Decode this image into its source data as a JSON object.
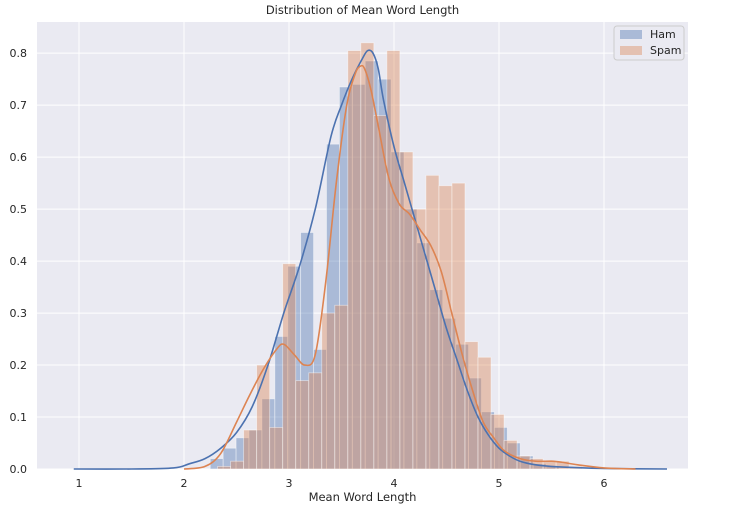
{
  "chart_data": {
    "type": "bar",
    "title": "Distribution of Mean Word Length",
    "xlabel": "Mean Word Length",
    "ylabel": "",
    "xlim": [
      0.6,
      6.8
    ],
    "ylim": [
      0,
      0.86
    ],
    "xticks": [
      1,
      2,
      3,
      4,
      5,
      6
    ],
    "yticks": [
      0.0,
      0.1,
      0.2,
      0.3,
      0.4,
      0.5,
      0.6,
      0.7,
      0.8
    ],
    "grid": true,
    "legend": "top-right",
    "series": [
      {
        "name": "Ham",
        "color": "#4c72b0",
        "bar_width": 0.123,
        "bins": [
          [
            2.25,
            0.02
          ],
          [
            2.373,
            0.04
          ],
          [
            2.496,
            0.06
          ],
          [
            2.619,
            0.075
          ],
          [
            2.742,
            0.135
          ],
          [
            2.865,
            0.255
          ],
          [
            2.988,
            0.39
          ],
          [
            3.111,
            0.455
          ],
          [
            3.234,
            0.23
          ],
          [
            3.357,
            0.625
          ],
          [
            3.48,
            0.735
          ],
          [
            3.603,
            0.74
          ],
          [
            3.726,
            0.785
          ],
          [
            3.849,
            0.75
          ],
          [
            3.972,
            0.61
          ],
          [
            4.095,
            0.5
          ],
          [
            4.218,
            0.435
          ],
          [
            4.341,
            0.345
          ],
          [
            4.464,
            0.29
          ],
          [
            4.587,
            0.24
          ],
          [
            4.71,
            0.175
          ],
          [
            4.833,
            0.11
          ],
          [
            4.956,
            0.08
          ],
          [
            5.079,
            0.05
          ],
          [
            5.202,
            0.025
          ],
          [
            5.325,
            0.01
          ],
          [
            5.448,
            0.005
          ]
        ],
        "kde_x": [
          0.95,
          1.5,
          1.9,
          2.05,
          2.2,
          2.35,
          2.5,
          2.65,
          2.8,
          2.95,
          3.1,
          3.25,
          3.4,
          3.5,
          3.6,
          3.7,
          3.75,
          3.8,
          3.85,
          3.9,
          4.0,
          4.1,
          4.2,
          4.3,
          4.4,
          4.5,
          4.6,
          4.7,
          4.8,
          4.9,
          5.0,
          5.1,
          5.2,
          5.35,
          5.5,
          5.7,
          6.0,
          6.6
        ],
        "kde_y": [
          0.0,
          0.0,
          0.002,
          0.01,
          0.02,
          0.04,
          0.07,
          0.12,
          0.2,
          0.3,
          0.39,
          0.5,
          0.64,
          0.7,
          0.75,
          0.79,
          0.805,
          0.8,
          0.77,
          0.71,
          0.62,
          0.55,
          0.48,
          0.41,
          0.34,
          0.27,
          0.21,
          0.15,
          0.1,
          0.065,
          0.04,
          0.025,
          0.015,
          0.008,
          0.005,
          0.003,
          0.001,
          0.0
        ]
      },
      {
        "name": "Spam",
        "color": "#dd8452",
        "bar_width": 0.124,
        "bins": [
          [
            2.32,
            0.005
          ],
          [
            2.444,
            0.015
          ],
          [
            2.568,
            0.075
          ],
          [
            2.692,
            0.2
          ],
          [
            2.816,
            0.08
          ],
          [
            2.94,
            0.395
          ],
          [
            3.064,
            0.17
          ],
          [
            3.188,
            0.185
          ],
          [
            3.312,
            0.3
          ],
          [
            3.436,
            0.315
          ],
          [
            3.56,
            0.805
          ],
          [
            3.684,
            0.82
          ],
          [
            3.808,
            0.68
          ],
          [
            3.932,
            0.805
          ],
          [
            4.056,
            0.61
          ],
          [
            4.18,
            0.5
          ],
          [
            4.304,
            0.565
          ],
          [
            4.428,
            0.545
          ],
          [
            4.552,
            0.55
          ],
          [
            4.676,
            0.245
          ],
          [
            4.8,
            0.215
          ],
          [
            4.924,
            0.105
          ],
          [
            5.048,
            0.055
          ],
          [
            5.172,
            0.025
          ],
          [
            5.296,
            0.02
          ],
          [
            5.42,
            0.015
          ],
          [
            5.544,
            0.015
          ],
          [
            5.668,
            0.005
          ]
        ],
        "kde_x": [
          2.0,
          2.2,
          2.35,
          2.5,
          2.62,
          2.75,
          2.88,
          2.95,
          3.05,
          3.15,
          3.25,
          3.35,
          3.45,
          3.55,
          3.63,
          3.68,
          3.72,
          3.78,
          3.85,
          3.95,
          4.05,
          4.15,
          4.25,
          4.35,
          4.45,
          4.55,
          4.65,
          4.75,
          4.85,
          4.95,
          5.05,
          5.2,
          5.35,
          5.5,
          5.6,
          5.75,
          6.0,
          6.3
        ],
        "kde_y": [
          0.0,
          0.005,
          0.03,
          0.09,
          0.14,
          0.19,
          0.23,
          0.24,
          0.22,
          0.2,
          0.22,
          0.36,
          0.55,
          0.7,
          0.76,
          0.775,
          0.77,
          0.73,
          0.66,
          0.56,
          0.51,
          0.49,
          0.46,
          0.43,
          0.38,
          0.3,
          0.22,
          0.15,
          0.09,
          0.06,
          0.035,
          0.02,
          0.015,
          0.015,
          0.013,
          0.008,
          0.002,
          0.0
        ]
      }
    ]
  }
}
